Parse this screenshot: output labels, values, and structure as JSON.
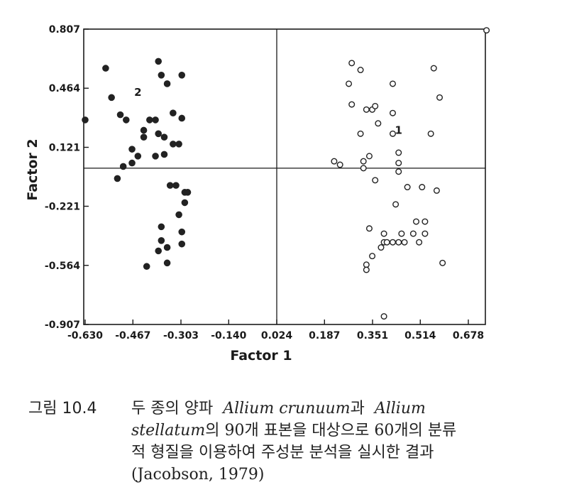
{
  "chart_data": {
    "type": "scatter",
    "xlabel": "Factor  1",
    "ylabel": "Factor 2",
    "xlim": [
      -0.63,
      0.76
    ],
    "ylim": [
      -0.907,
      0.807
    ],
    "x_ticks": [
      -0.63,
      -0.467,
      -0.303,
      -0.14,
      0.024,
      0.187,
      0.351,
      0.514,
      0.678
    ],
    "x_tick_labels": [
      "-0.630",
      "-0.467",
      "-0.303",
      "-0.140",
      "0.024",
      "0.187",
      "0.351",
      "0.514",
      "0.678"
    ],
    "y_ticks": [
      0.807,
      0.464,
      0.121,
      -0.221,
      -0.564,
      -0.907
    ],
    "y_tick_labels": [
      "0.807",
      "0.464",
      "0.121",
      "-0.221",
      "-0.564",
      "-0.907"
    ],
    "reference_lines": {
      "x": 0.024,
      "y": 0.0
    },
    "grid": false,
    "annotations": [
      {
        "text": "2",
        "x": -0.45,
        "y": 0.42
      },
      {
        "text": "1",
        "x": 0.44,
        "y": 0.2
      }
    ],
    "series": [
      {
        "marker": "filled-circle",
        "color": "#222222",
        "points": [
          [
            -0.56,
            0.58
          ],
          [
            -0.63,
            0.28
          ],
          [
            -0.54,
            0.41
          ],
          [
            -0.51,
            0.31
          ],
          [
            -0.49,
            0.28
          ],
          [
            -0.43,
            0.22
          ],
          [
            -0.43,
            0.18
          ],
          [
            -0.41,
            0.28
          ],
          [
            -0.39,
            0.28
          ],
          [
            -0.39,
            0.07
          ],
          [
            -0.47,
            0.11
          ],
          [
            -0.45,
            0.07
          ],
          [
            -0.47,
            0.03
          ],
          [
            -0.5,
            0.01
          ],
          [
            -0.52,
            -0.06
          ],
          [
            -0.38,
            0.62
          ],
          [
            -0.37,
            0.54
          ],
          [
            -0.35,
            0.49
          ],
          [
            -0.33,
            0.32
          ],
          [
            -0.3,
            0.54
          ],
          [
            -0.38,
            0.2
          ],
          [
            -0.36,
            0.18
          ],
          [
            -0.33,
            0.14
          ],
          [
            -0.31,
            0.14
          ],
          [
            -0.3,
            0.29
          ],
          [
            -0.36,
            0.08
          ],
          [
            -0.34,
            -0.1
          ],
          [
            -0.32,
            -0.1
          ],
          [
            -0.29,
            -0.14
          ],
          [
            -0.28,
            -0.14
          ],
          [
            -0.29,
            -0.2
          ],
          [
            -0.31,
            -0.27
          ],
          [
            -0.3,
            -0.37
          ],
          [
            -0.3,
            -0.44
          ],
          [
            -0.37,
            -0.34
          ],
          [
            -0.37,
            -0.42
          ],
          [
            -0.35,
            -0.46
          ],
          [
            -0.38,
            -0.48
          ],
          [
            -0.35,
            -0.55
          ],
          [
            -0.42,
            -0.57
          ]
        ]
      },
      {
        "marker": "open-circle",
        "color": "#222222",
        "points": [
          [
            0.28,
            0.61
          ],
          [
            0.31,
            0.57
          ],
          [
            0.27,
            0.49
          ],
          [
            0.42,
            0.49
          ],
          [
            0.56,
            0.58
          ],
          [
            0.58,
            0.41
          ],
          [
            0.74,
            0.8
          ],
          [
            0.28,
            0.37
          ],
          [
            0.33,
            0.34
          ],
          [
            0.35,
            0.34
          ],
          [
            0.36,
            0.36
          ],
          [
            0.42,
            0.32
          ],
          [
            0.37,
            0.26
          ],
          [
            0.31,
            0.2
          ],
          [
            0.42,
            0.2
          ],
          [
            0.55,
            0.2
          ],
          [
            0.44,
            0.09
          ],
          [
            0.22,
            0.04
          ],
          [
            0.24,
            0.02
          ],
          [
            0.32,
            0.04
          ],
          [
            0.34,
            0.07
          ],
          [
            0.32,
            0.0
          ],
          [
            0.44,
            0.03
          ],
          [
            0.44,
            -0.02
          ],
          [
            0.36,
            -0.07
          ],
          [
            0.47,
            -0.11
          ],
          [
            0.52,
            -0.11
          ],
          [
            0.57,
            -0.13
          ],
          [
            0.43,
            -0.21
          ],
          [
            0.5,
            -0.31
          ],
          [
            0.53,
            -0.31
          ],
          [
            0.34,
            -0.35
          ],
          [
            0.39,
            -0.38
          ],
          [
            0.45,
            -0.38
          ],
          [
            0.49,
            -0.38
          ],
          [
            0.53,
            -0.38
          ],
          [
            0.39,
            -0.43
          ],
          [
            0.4,
            -0.43
          ],
          [
            0.42,
            -0.43
          ],
          [
            0.44,
            -0.43
          ],
          [
            0.46,
            -0.43
          ],
          [
            0.51,
            -0.43
          ],
          [
            0.38,
            -0.46
          ],
          [
            0.35,
            -0.51
          ],
          [
            0.33,
            -0.56
          ],
          [
            0.33,
            -0.59
          ],
          [
            0.59,
            -0.55
          ],
          [
            0.39,
            -0.86
          ]
        ]
      }
    ]
  },
  "caption": {
    "figure_label": "그림 10.4",
    "line1_text": "두 종의 양파",
    "species1": "Allium crunuum",
    "conj": "과",
    "species2_part1": "Allium",
    "species2_part2": "stellatum",
    "line2_text": "의 90개 표본을 대상으로 60개의 분류",
    "line3_text": "적 형질을 이용하여 주성분 분석을 실시한 결과",
    "citation": "(Jacobson, 1979)"
  }
}
